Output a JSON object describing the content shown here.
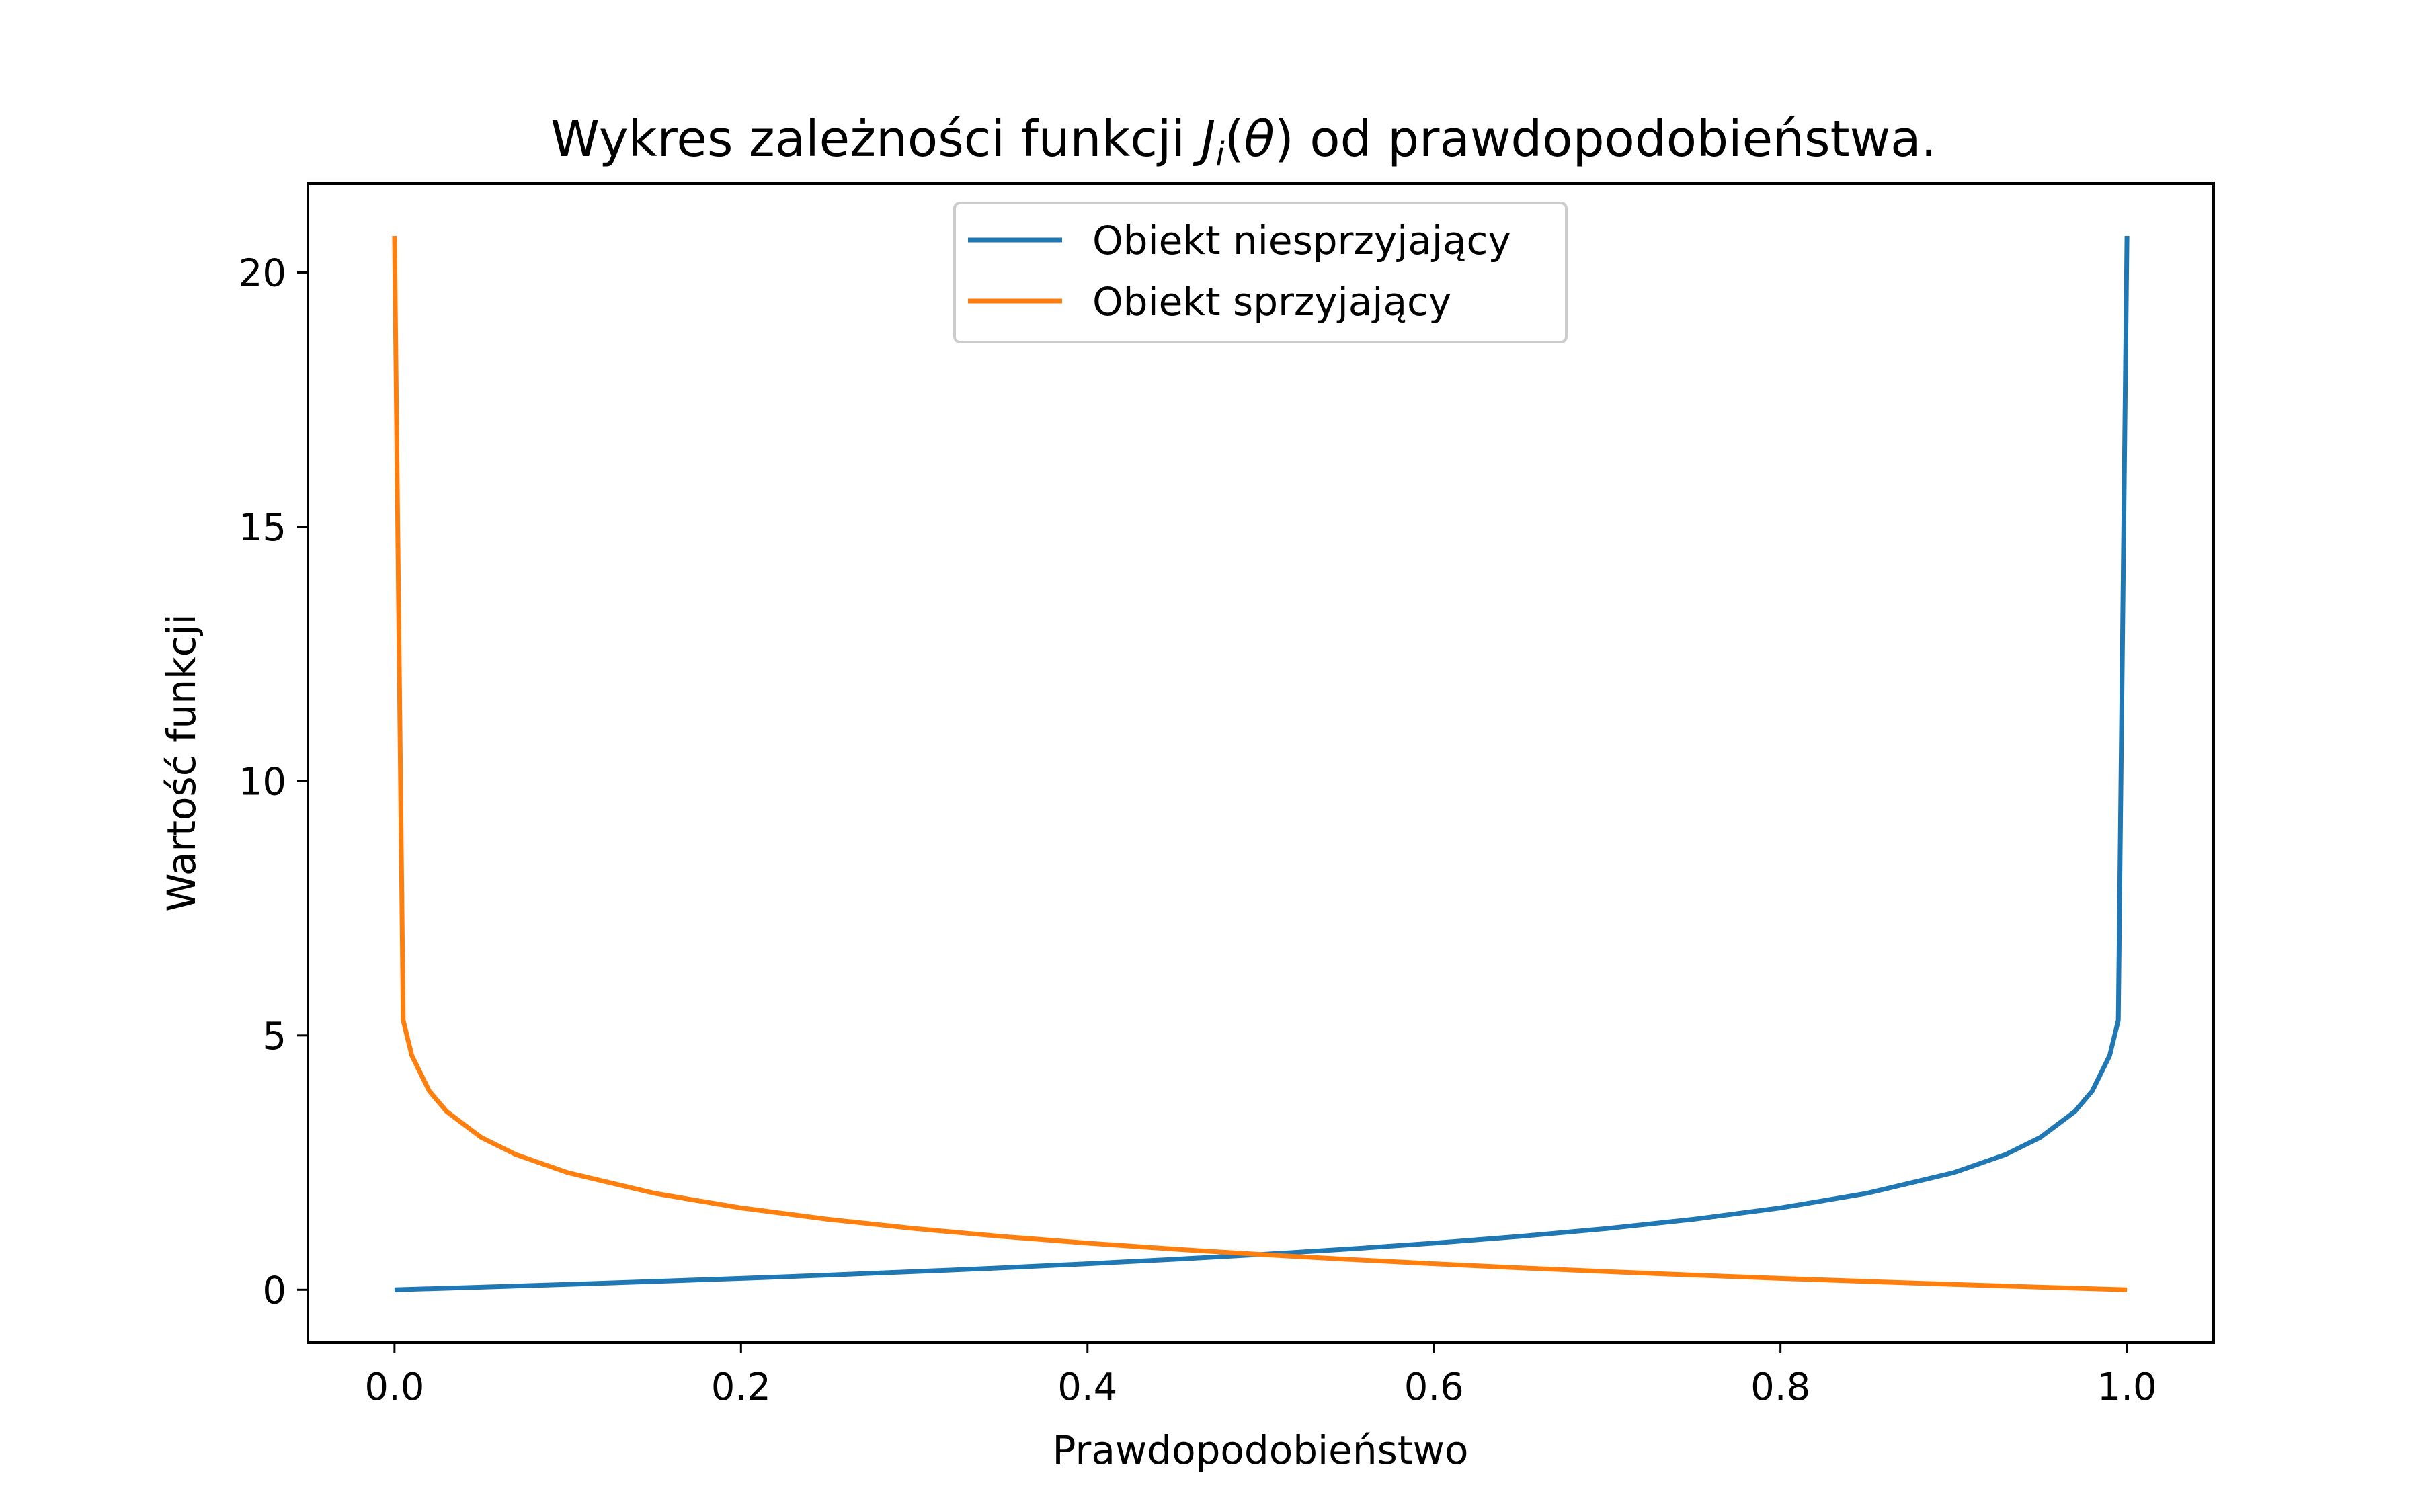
{
  "chart_data": {
    "type": "line",
    "title": {
      "prefix": "Wykres zależności funkcji ",
      "symbol": "J",
      "subscript": "i",
      "paren_open": "(",
      "theta": "θ",
      "paren_close": ")",
      "suffix": " od prawdopodobieństwa."
    },
    "xlabel": "Prawdopodobieństwo",
    "ylabel": "Wartość funkcji",
    "xlim": [
      -0.05,
      1.05
    ],
    "ylim": [
      -1.04,
      21.75
    ],
    "xticks": [
      {
        "value": 0.0,
        "label": "0.0"
      },
      {
        "value": 0.2,
        "label": "0.2"
      },
      {
        "value": 0.4,
        "label": "0.4"
      },
      {
        "value": 0.6,
        "label": "0.6"
      },
      {
        "value": 0.8,
        "label": "0.8"
      },
      {
        "value": 1.0,
        "label": "1.0"
      }
    ],
    "yticks": [
      {
        "value": 0,
        "label": "0"
      },
      {
        "value": 5,
        "label": "5"
      },
      {
        "value": 10,
        "label": "10"
      },
      {
        "value": 15,
        "label": "15"
      },
      {
        "value": 20,
        "label": "20"
      }
    ],
    "grid": false,
    "legend_position": "upper center",
    "series": [
      {
        "name": "Obiekt niesprzyjający",
        "color": "#1f77b4",
        "points": [
          [
            0.0,
            0.0
          ],
          [
            0.01,
            0.01
          ],
          [
            0.05,
            0.051
          ],
          [
            0.1,
            0.105
          ],
          [
            0.15,
            0.163
          ],
          [
            0.2,
            0.223
          ],
          [
            0.25,
            0.288
          ],
          [
            0.3,
            0.357
          ],
          [
            0.35,
            0.431
          ],
          [
            0.4,
            0.511
          ],
          [
            0.45,
            0.598
          ],
          [
            0.5,
            0.693
          ],
          [
            0.55,
            0.799
          ],
          [
            0.6,
            0.916
          ],
          [
            0.65,
            1.05
          ],
          [
            0.7,
            1.204
          ],
          [
            0.75,
            1.386
          ],
          [
            0.8,
            1.609
          ],
          [
            0.85,
            1.897
          ],
          [
            0.9,
            2.303
          ],
          [
            0.93,
            2.659
          ],
          [
            0.95,
            2.996
          ],
          [
            0.97,
            3.507
          ],
          [
            0.98,
            3.912
          ],
          [
            0.99,
            4.605
          ],
          [
            0.995,
            5.298
          ],
          [
            1.0,
            20.72
          ]
        ]
      },
      {
        "name": "Obiekt sprzyjający",
        "color": "#ff7f0e",
        "points": [
          [
            0.0,
            20.72
          ],
          [
            0.005,
            5.298
          ],
          [
            0.01,
            4.605
          ],
          [
            0.02,
            3.912
          ],
          [
            0.03,
            3.507
          ],
          [
            0.05,
            2.996
          ],
          [
            0.07,
            2.659
          ],
          [
            0.1,
            2.303
          ],
          [
            0.15,
            1.897
          ],
          [
            0.2,
            1.609
          ],
          [
            0.25,
            1.386
          ],
          [
            0.3,
            1.204
          ],
          [
            0.35,
            1.05
          ],
          [
            0.4,
            0.916
          ],
          [
            0.45,
            0.799
          ],
          [
            0.5,
            0.693
          ],
          [
            0.55,
            0.598
          ],
          [
            0.6,
            0.511
          ],
          [
            0.65,
            0.431
          ],
          [
            0.7,
            0.357
          ],
          [
            0.75,
            0.288
          ],
          [
            0.8,
            0.223
          ],
          [
            0.85,
            0.163
          ],
          [
            0.9,
            0.105
          ],
          [
            0.95,
            0.051
          ],
          [
            0.99,
            0.01
          ],
          [
            1.0,
            0.0
          ]
        ]
      }
    ]
  }
}
